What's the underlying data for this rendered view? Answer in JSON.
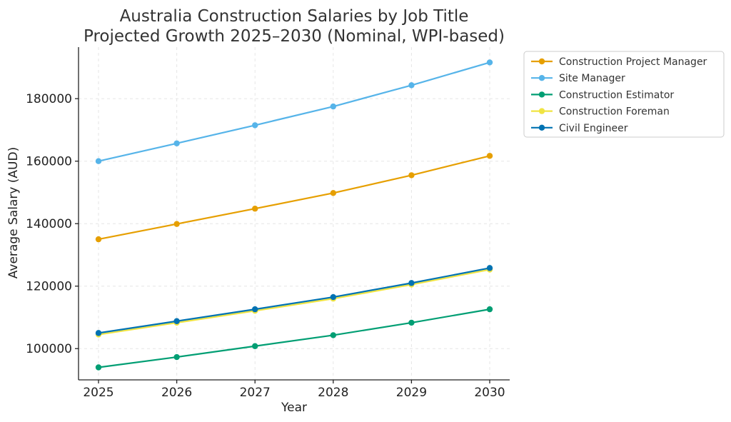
{
  "chart_data": {
    "type": "line",
    "title": [
      "Australia Construction Salaries by Job Title",
      "Projected Growth 2025–2030 (Nominal, WPI-based)"
    ],
    "xlabel": "Year",
    "ylabel": "Average Salary (AUD)",
    "categories": [
      "2025",
      "2026",
      "2027",
      "2028",
      "2029",
      "2030"
    ],
    "xlim": [
      2024.95,
      2030.05
    ],
    "ylim": [
      90000,
      196500
    ],
    "yticks": [
      100000,
      120000,
      140000,
      160000,
      180000
    ],
    "ytick_labels": [
      "100000",
      "120000",
      "140000",
      "160000",
      "180000"
    ],
    "grid": true,
    "legend_position": "outside-top-right",
    "series": [
      {
        "name": "Construction Project Manager",
        "color": "#E69F00",
        "values": [
          135000,
          139900,
          144800,
          149800,
          155500,
          161700
        ]
      },
      {
        "name": "Site Manager",
        "color": "#56B4E9",
        "values": [
          160000,
          165700,
          171500,
          177500,
          184300,
          191600
        ]
      },
      {
        "name": "Construction Estimator",
        "color": "#009E73",
        "values": [
          94000,
          97300,
          100800,
          104300,
          108300,
          112600
        ]
      },
      {
        "name": "Construction Foreman",
        "color": "#F0E442",
        "values": [
          104500,
          108300,
          112100,
          116000,
          120500,
          125300
        ]
      },
      {
        "name": "Civil Engineer",
        "color": "#0072B2",
        "values": [
          105000,
          108800,
          112600,
          116500,
          121000,
          125800
        ]
      }
    ]
  }
}
